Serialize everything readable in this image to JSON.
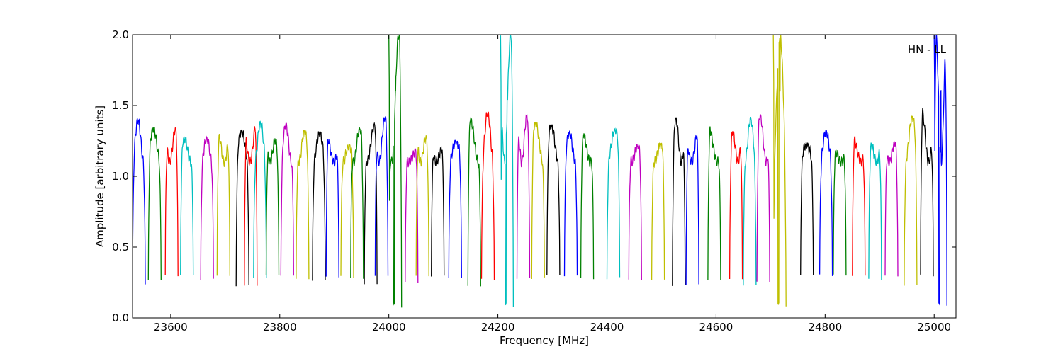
{
  "chart_data": {
    "type": "line",
    "title": "",
    "xlabel": "Frequency [MHz]",
    "ylabel": "Amplitude [arbitrary units]",
    "xlim": [
      23530,
      25040
    ],
    "ylim": [
      0.0,
      2.0
    ],
    "xticks": [
      23600,
      23800,
      24000,
      24200,
      24400,
      24600,
      24800,
      25000
    ],
    "yticks": [
      0.0,
      0.5,
      1.0,
      1.5,
      2.0
    ],
    "xtick_labels": [
      "23600",
      "23800",
      "24000",
      "24200",
      "24400",
      "24600",
      "24800",
      "25000"
    ],
    "ytick_labels": [
      "0.0",
      "0.5",
      "1.0",
      "1.5",
      "2.0"
    ],
    "grid": false,
    "annotation": "HN - LL",
    "palette": [
      "#0000ff",
      "#008000",
      "#ff0000",
      "#00bfbf",
      "#bf00bf",
      "#bfbf00",
      "#000000"
    ],
    "channel_spacing_mhz": 23.4,
    "channels": [
      {
        "f0": 23530,
        "peak": 1.4,
        "low": 0.24,
        "color": "#0000ff"
      },
      {
        "f0": 23559,
        "peak": 1.34,
        "low": 0.27,
        "color": "#008000"
      },
      {
        "f0": 23590,
        "peak": 1.34,
        "low": 0.3,
        "color": "#ff0000"
      },
      {
        "f0": 23618,
        "peak": 1.27,
        "low": 0.3,
        "color": "#00bfbf"
      },
      {
        "f0": 23655,
        "peak": 1.27,
        "low": 0.27,
        "color": "#bf00bf"
      },
      {
        "f0": 23685,
        "peak": 1.3,
        "low": 0.3,
        "color": "#bfbf00"
      },
      {
        "f0": 23720,
        "peak": 1.32,
        "low": 0.23,
        "color": "#000000"
      },
      {
        "f0": 23735,
        "peak": 1.42,
        "low": 0.23,
        "color": "#ff0000"
      },
      {
        "f0": 23752,
        "peak": 1.38,
        "low": 0.28,
        "color": "#00bfbf"
      },
      {
        "f0": 23775,
        "peak": 1.26,
        "low": 0.3,
        "color": "#008000"
      },
      {
        "f0": 23802,
        "peak": 1.37,
        "low": 0.3,
        "color": "#bf00bf"
      },
      {
        "f0": 23830,
        "peak": 1.32,
        "low": 0.28,
        "color": "#bfbf00"
      },
      {
        "f0": 23860,
        "peak": 1.31,
        "low": 0.27,
        "color": "#000000"
      },
      {
        "f0": 23885,
        "peak": 1.3,
        "low": 0.29,
        "color": "#0000ff"
      },
      {
        "f0": 23912,
        "peak": 1.22,
        "low": 0.29,
        "color": "#bfbf00"
      },
      {
        "f0": 23930,
        "peak": 1.34,
        "low": 0.28,
        "color": "#008000"
      },
      {
        "f0": 23955,
        "peak": 1.37,
        "low": 0.24,
        "color": "#000000"
      },
      {
        "f0": 23975,
        "peak": 1.42,
        "low": 0.3,
        "color": "#0000ff"
      },
      {
        "f0": 24000,
        "peak": 2.0,
        "low": 0.08,
        "color": "#008000"
      },
      {
        "f0": 24030,
        "peak": 1.19,
        "low": 0.25,
        "color": "#bf00bf"
      },
      {
        "f0": 24050,
        "peak": 1.28,
        "low": 0.29,
        "color": "#bfbf00"
      },
      {
        "f0": 24078,
        "peak": 1.2,
        "low": 0.3,
        "color": "#000000"
      },
      {
        "f0": 24110,
        "peak": 1.25,
        "low": 0.28,
        "color": "#0000ff"
      },
      {
        "f0": 24145,
        "peak": 1.41,
        "low": 0.23,
        "color": "#008000"
      },
      {
        "f0": 24170,
        "peak": 1.45,
        "low": 0.27,
        "color": "#ff0000"
      },
      {
        "f0": 24205,
        "peak": 2.0,
        "low": 0.08,
        "color": "#00bfbf"
      },
      {
        "f0": 24235,
        "peak": 1.43,
        "low": 0.28,
        "color": "#bf00bf"
      },
      {
        "f0": 24262,
        "peak": 1.38,
        "low": 0.28,
        "color": "#bfbf00"
      },
      {
        "f0": 24290,
        "peak": 1.36,
        "low": 0.3,
        "color": "#000000"
      },
      {
        "f0": 24322,
        "peak": 1.31,
        "low": 0.3,
        "color": "#0000ff"
      },
      {
        "f0": 24352,
        "peak": 1.3,
        "low": 0.28,
        "color": "#008000"
      },
      {
        "f0": 24400,
        "peak": 1.33,
        "low": 0.28,
        "color": "#00bfbf"
      },
      {
        "f0": 24440,
        "peak": 1.22,
        "low": 0.27,
        "color": "#bf00bf"
      },
      {
        "f0": 24482,
        "peak": 1.23,
        "low": 0.27,
        "color": "#bfbf00"
      },
      {
        "f0": 24520,
        "peak": 1.41,
        "low": 0.23,
        "color": "#000000"
      },
      {
        "f0": 24545,
        "peak": 1.38,
        "low": 0.23,
        "color": "#0000ff"
      },
      {
        "f0": 24585,
        "peak": 1.35,
        "low": 0.27,
        "color": "#008000"
      },
      {
        "f0": 24625,
        "peak": 1.31,
        "low": 0.27,
        "color": "#ff0000"
      },
      {
        "f0": 24650,
        "peak": 1.41,
        "low": 0.23,
        "color": "#00bfbf"
      },
      {
        "f0": 24675,
        "peak": 1.43,
        "low": 0.25,
        "color": "#bf00bf"
      },
      {
        "f0": 24705,
        "peak": 2.0,
        "low": 0.08,
        "color": "#bfbf00"
      },
      {
        "f0": 24755,
        "peak": 1.23,
        "low": 0.3,
        "color": "#000000"
      },
      {
        "f0": 24790,
        "peak": 1.32,
        "low": 0.3,
        "color": "#0000ff"
      },
      {
        "f0": 24815,
        "peak": 1.18,
        "low": 0.3,
        "color": "#008000"
      },
      {
        "f0": 24850,
        "peak": 1.28,
        "low": 0.3,
        "color": "#ff0000"
      },
      {
        "f0": 24880,
        "peak": 1.23,
        "low": 0.27,
        "color": "#00bfbf"
      },
      {
        "f0": 24910,
        "peak": 1.24,
        "low": 0.3,
        "color": "#bf00bf"
      },
      {
        "f0": 24945,
        "peak": 1.42,
        "low": 0.23,
        "color": "#bfbf00"
      },
      {
        "f0": 24975,
        "peak": 1.48,
        "low": 0.3,
        "color": "#000000"
      },
      {
        "f0": 25000,
        "peak": 2.0,
        "low": 0.08,
        "color": "#0000ff"
      }
    ]
  }
}
